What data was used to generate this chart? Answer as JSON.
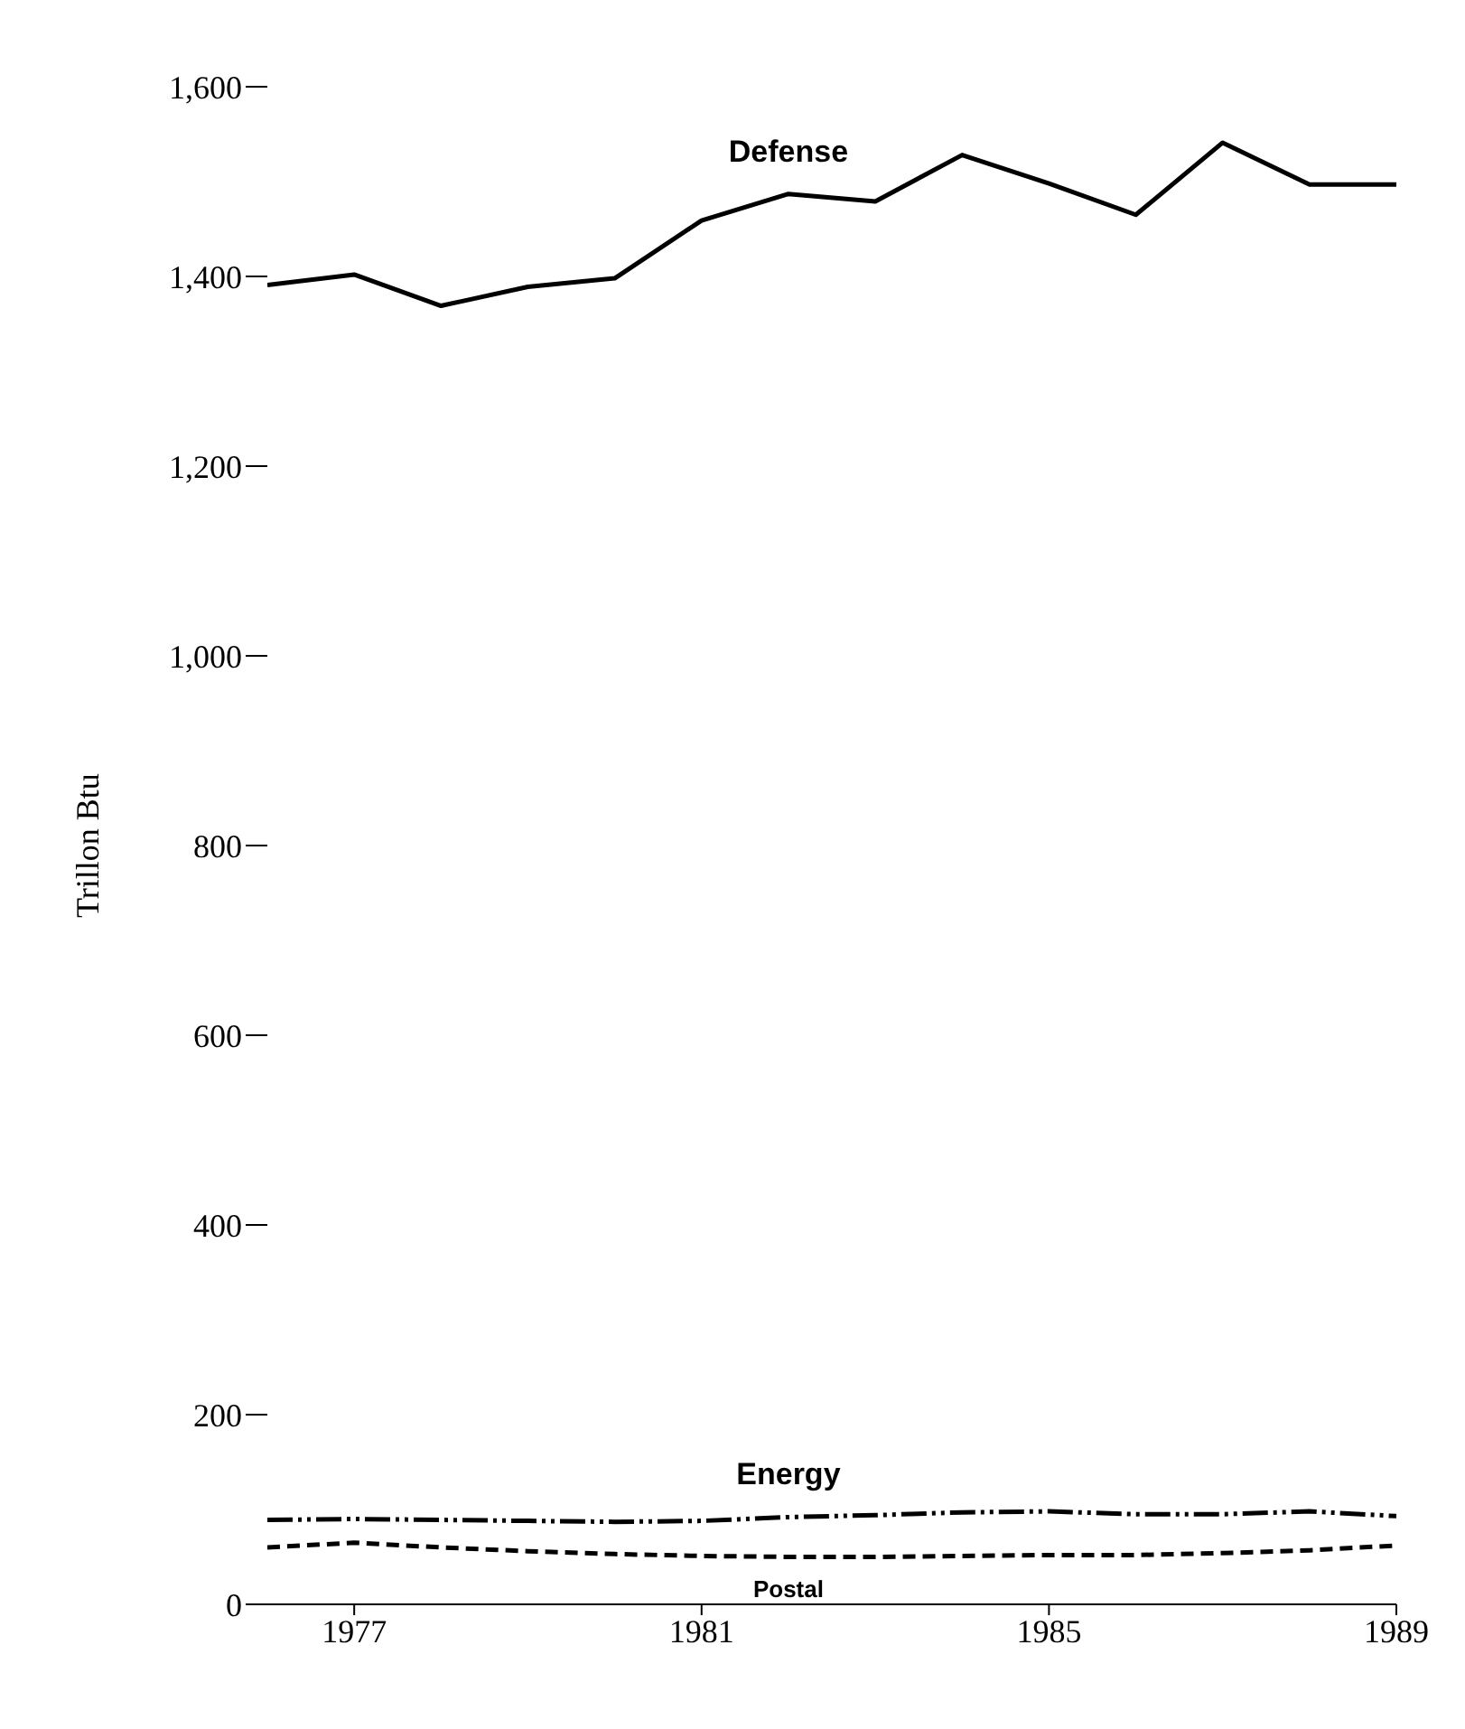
{
  "chart_data": {
    "type": "line",
    "ylabel": "Trillon Btu",
    "x": [
      1976,
      1977,
      1978,
      1979,
      1980,
      1981,
      1982,
      1983,
      1984,
      1985,
      1986,
      1987,
      1988,
      1989
    ],
    "xlim": [
      1976,
      1989
    ],
    "xticks": [
      1977,
      1981,
      1985,
      1989
    ],
    "ylim": [
      0,
      1600
    ],
    "yticks": [
      {
        "value": 0,
        "label": "0"
      },
      {
        "value": 200,
        "label": "200"
      },
      {
        "value": 400,
        "label": "400"
      },
      {
        "value": 600,
        "label": "600"
      },
      {
        "value": 800,
        "label": "800"
      },
      {
        "value": 1000,
        "label": "1,000"
      },
      {
        "value": 1200,
        "label": "1,200"
      },
      {
        "value": 1400,
        "label": "1,400"
      },
      {
        "value": 1600,
        "label": "1,600"
      }
    ],
    "marker": "none",
    "series": [
      {
        "name": "Defense",
        "color": "#000000",
        "line_style": "solid",
        "values": [
          1391,
          1402,
          1369,
          1389,
          1398,
          1459,
          1487,
          1479,
          1528,
          1498,
          1465,
          1541,
          1497,
          1497
        ]
      },
      {
        "name": "Energy",
        "color": "#000000",
        "line_style": "dashdot",
        "values": [
          89,
          90,
          89,
          88,
          87,
          88,
          92,
          94,
          97,
          98,
          95,
          95,
          98,
          93
        ]
      },
      {
        "name": "Postal",
        "color": "#000000",
        "line_style": "dashed",
        "values": [
          60,
          65,
          60,
          56,
          53,
          51,
          50,
          50,
          51,
          52,
          52,
          54,
          57,
          62
        ]
      }
    ]
  }
}
